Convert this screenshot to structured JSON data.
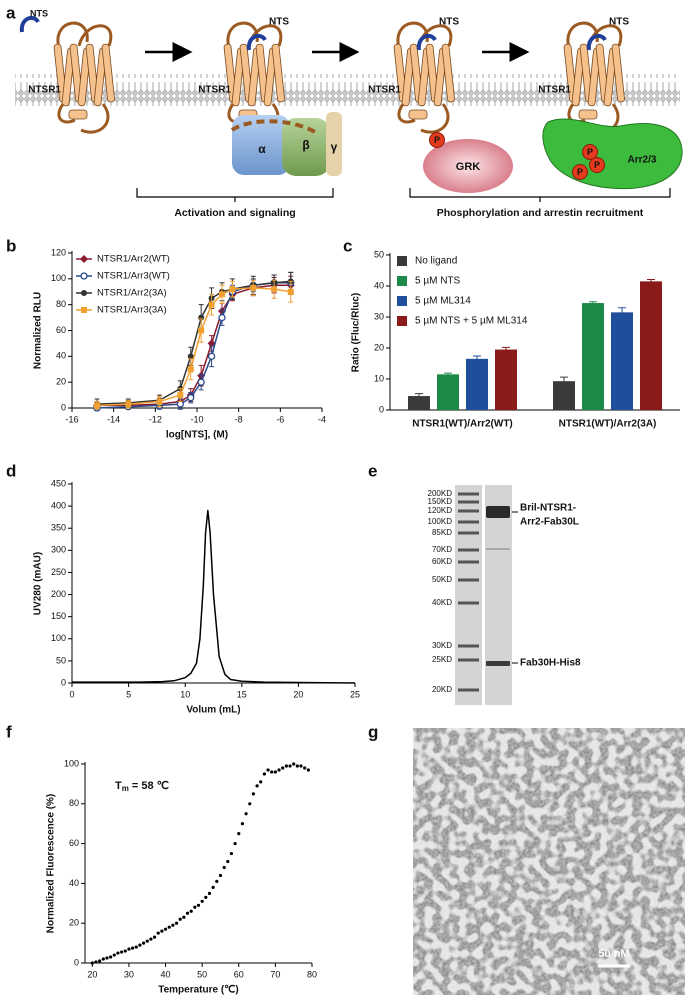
{
  "panel_labels": [
    "a",
    "b",
    "c",
    "d",
    "e",
    "f",
    "g"
  ],
  "diagram": {
    "states": [
      {
        "receptor": "NTSR1",
        "ligand": "NTS"
      },
      {
        "receptor": "NTSR1",
        "ligand": "NTS"
      },
      {
        "receptor": "NTSR1",
        "ligand": "NTS"
      },
      {
        "receptor": "NTSR1",
        "ligand": "NTS"
      }
    ],
    "g_protein": [
      "α",
      "β",
      "γ"
    ],
    "kinase": "GRK",
    "phospho_sites": [
      "P",
      "P",
      "P",
      "P"
    ],
    "arrestin": "Arr2/3",
    "brackets": [
      "Activation and signaling",
      "Phosphorylation and arrestin recruitment"
    ]
  },
  "chart_data": [
    {
      "type": "line",
      "x_label": "log[NTS], (M)",
      "y_label": "Normalized RLU",
      "xlim": [
        -16,
        -4
      ],
      "xticks": [
        -16,
        -14,
        -12,
        -10,
        -8,
        -6,
        -4
      ],
      "ylim": [
        0,
        120
      ],
      "yticks": [
        0,
        20,
        40,
        60,
        80,
        100,
        120
      ],
      "legend": "upper left",
      "x": [
        -14.8,
        -13.3,
        -11.8,
        -10.8,
        -10.3,
        -9.8,
        -9.3,
        -8.8,
        -8.3,
        -7.3,
        -6.3,
        -5.5
      ],
      "series": [
        {
          "name": "NTSR1/Arr2(WT)",
          "color": "#8b1a2e",
          "marker": "diamond",
          "values": [
            2,
            2,
            3,
            5,
            10,
            25,
            50,
            75,
            88,
            93,
            95,
            95
          ],
          "errors": [
            3,
            2,
            3,
            3,
            5,
            8,
            6,
            6,
            5,
            6,
            6,
            7
          ]
        },
        {
          "name": "NTSR1/Arr3(WT)",
          "color": "#2b4a8b",
          "marker": "open-circle",
          "values": [
            0,
            1,
            2,
            3,
            8,
            20,
            40,
            70,
            90,
            95,
            97,
            97
          ],
          "errors": [
            2,
            2,
            3,
            4,
            4,
            6,
            8,
            6,
            5,
            5,
            6,
            8
          ]
        },
        {
          "name": "NTSR1/Arr2(3A)",
          "color": "#333333",
          "marker": "circle",
          "values": [
            3,
            4,
            6,
            15,
            40,
            70,
            85,
            90,
            92,
            95,
            97,
            98
          ],
          "errors": [
            4,
            3,
            4,
            6,
            7,
            10,
            8,
            7,
            8,
            7,
            6,
            7
          ]
        },
        {
          "name": "NTSR1/Arr3(3A)",
          "color": "#f0a030",
          "marker": "square",
          "values": [
            2,
            3,
            5,
            10,
            30,
            60,
            80,
            88,
            92,
            93,
            92,
            90
          ],
          "errors": [
            3,
            3,
            4,
            5,
            8,
            9,
            8,
            7,
            6,
            6,
            7,
            8
          ]
        }
      ]
    },
    {
      "type": "bar",
      "y_label": "Ratio (Fluc/Rluc)",
      "ylim": [
        0,
        50
      ],
      "yticks": [
        0,
        10,
        20,
        30,
        40,
        50
      ],
      "legend": "upper left",
      "categories": [
        "NTSR1(WT)/Arr2(WT)",
        "NTSR1(WT)/Arr2(3A)"
      ],
      "series": [
        {
          "name": "No ligand",
          "color": "#3a3a3a",
          "values": [
            4.5,
            9.3
          ],
          "errors": [
            0.8,
            1.3
          ]
        },
        {
          "name": "5 µM NTS",
          "color": "#1e8a4a",
          "values": [
            11.5,
            34.5
          ],
          "errors": [
            0.4,
            0.4
          ]
        },
        {
          "name": "5 µM ML314",
          "color": "#1f4e9a",
          "values": [
            16.5,
            31.5
          ],
          "errors": [
            0.9,
            1.5
          ]
        },
        {
          "name": "5 µM NTS + 5 µM ML314",
          "color": "#8b1a1a",
          "values": [
            19.5,
            41.5
          ],
          "errors": [
            0.7,
            0.6
          ]
        }
      ]
    },
    {
      "type": "line",
      "x_label": "Volum (mL)",
      "y_label": "UV280 (mAU)",
      "xlim": [
        0,
        25
      ],
      "xticks": [
        0,
        5,
        10,
        15,
        20,
        25
      ],
      "ylim": [
        0,
        450
      ],
      "yticks": [
        0,
        50,
        100,
        150,
        200,
        250,
        300,
        350,
        400,
        450
      ],
      "x": [
        0,
        2,
        4,
        6,
        8,
        9,
        10,
        10.5,
        11,
        11.3,
        11.6,
        11.8,
        12,
        12.2,
        12.5,
        13,
        13.5,
        14,
        15,
        17,
        20,
        25
      ],
      "series": [
        {
          "color": "#000000",
          "values": [
            2,
            2,
            2,
            2,
            3,
            5,
            12,
            22,
            45,
            100,
            220,
            340,
            390,
            340,
            200,
            60,
            20,
            8,
            4,
            2,
            1,
            0
          ]
        }
      ]
    },
    {
      "type": "scatter",
      "x_label": "Temperature (℃)",
      "y_label": "Normalized Fluorescence (%)",
      "annotation": {
        "symbol": "T",
        "subscript": "m",
        "text": "= 58 ℃"
      },
      "xlim": [
        18,
        80
      ],
      "xticks": [
        20,
        30,
        40,
        50,
        60,
        70,
        80
      ],
      "ylim": [
        0,
        100
      ],
      "yticks": [
        0,
        20,
        40,
        60,
        80,
        100
      ],
      "color": "#000000",
      "x": [
        20,
        21,
        22,
        23,
        24,
        25,
        26,
        27,
        28,
        29,
        30,
        31,
        32,
        33,
        34,
        35,
        36,
        37,
        38,
        39,
        40,
        41,
        42,
        43,
        44,
        45,
        46,
        47,
        48,
        49,
        50,
        51,
        52,
        53,
        54,
        55,
        56,
        57,
        58,
        59,
        60,
        61,
        62,
        63,
        64,
        65,
        66,
        67,
        68,
        69,
        70,
        71,
        72,
        73,
        74,
        75,
        76,
        77,
        78,
        79
      ],
      "values": [
        0,
        0.5,
        1,
        2,
        2.5,
        3,
        4,
        5,
        5.5,
        6,
        7,
        7.5,
        8,
        9,
        10,
        11,
        12,
        13,
        15,
        16,
        17,
        18,
        19,
        20,
        22,
        23,
        25,
        26,
        28,
        29,
        31,
        33,
        35,
        38,
        41,
        44,
        48,
        51,
        55,
        60,
        65,
        70,
        75,
        80,
        85,
        89,
        91,
        95,
        97,
        96,
        96,
        97,
        98,
        99,
        99,
        100,
        99,
        99,
        98,
        97
      ]
    }
  ],
  "gel": {
    "markers": [
      "200KD",
      "150KD",
      "120KD",
      "100KD",
      "85KD",
      "70KD",
      "60KD",
      "50KD",
      "40KD",
      "30KD",
      "25KD",
      "20KD"
    ],
    "band_labels": [
      [
        "Bril-NTSR1-",
        "Arr2-Fab30L"
      ],
      [
        "Fab30H-His8"
      ]
    ]
  },
  "micrograph": {
    "scale_bar": "50 nM"
  }
}
